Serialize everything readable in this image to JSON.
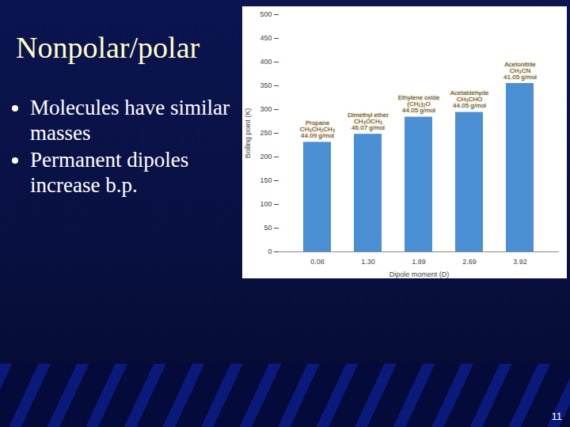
{
  "slide": {
    "title": "Nonpolar/polar",
    "bullets": [
      "Molecules have similar masses",
      "Permanent dipoles increase b.p."
    ],
    "page_number": "11"
  },
  "chart_data": {
    "type": "bar",
    "categories": [
      "0.08",
      "1.30",
      "1.89",
      "2.69",
      "3.92"
    ],
    "values": [
      231,
      248,
      284,
      294,
      355
    ],
    "annotations": [
      [
        "Propane",
        "CH₃CH₂CH₃",
        "44.09 g/mol"
      ],
      [
        "Dimethyl ether",
        "CH₃OCH₃",
        "46.07 g/mol"
      ],
      [
        "Ethylene oxide",
        "(CH₂)₂O",
        "44.05 g/mol"
      ],
      [
        "Acetaldehyde",
        "CH₃CHO",
        "44.05 g/mol"
      ],
      [
        "Acetonitrile",
        "CH₃CN",
        "41.05 g/mol"
      ]
    ],
    "color": "#4a8fd4",
    "xlabel": "Dipole moment (D)",
    "ylabel": "Boiling point (K)",
    "ylim": [
      0,
      500
    ],
    "yticks": [
      0,
      50,
      100,
      150,
      200,
      250,
      300,
      350,
      400,
      450,
      500
    ],
    "grid": false
  }
}
